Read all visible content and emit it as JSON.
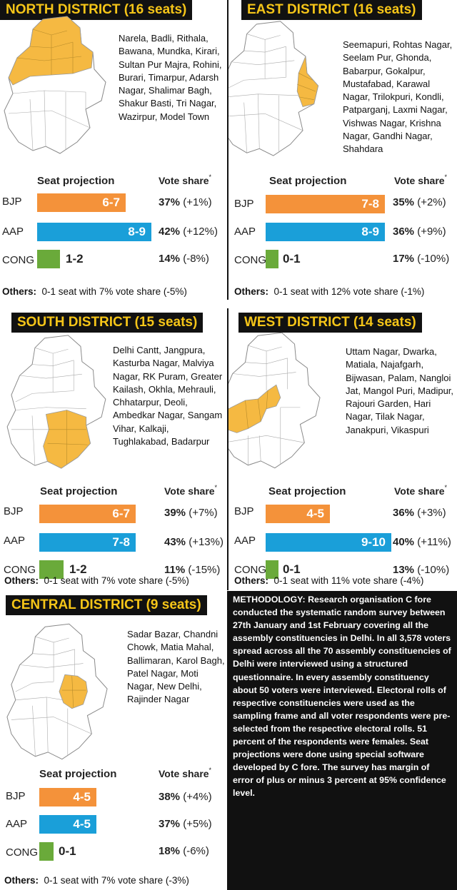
{
  "colors": {
    "bjp": "#f4923a",
    "aap": "#1a9fd9",
    "cong": "#6aaa3a",
    "highlight": "#f5b942",
    "title_bg": "#111111",
    "title_text": "#f5c518"
  },
  "labels": {
    "seat_projection": "Seat projection",
    "vote_share": "Vote share",
    "vote_share_mark": "*",
    "others_prefix": "Others:"
  },
  "districts": [
    {
      "title": "NORTH DISTRICT (16 seats)",
      "constituencies": "Narela, Badli, Rithala, Bawana, Mundka, Kirari, Sultan Pur Majra, Rohini, Burari, Timarpur, Adarsh Nagar, Shalimar Bagh, Shakur Basti, Tri Nagar, Wazirpur, Model Town",
      "others": "0-1 seat with 7% vote share (-5%)",
      "parties": [
        {
          "name": "BJP",
          "seats": "6-7",
          "vote": "37%",
          "change": "(+1%)"
        },
        {
          "name": "AAP",
          "seats": "8-9",
          "vote": "42%",
          "change": "(+12%)"
        },
        {
          "name": "CONG",
          "seats": "1-2",
          "vote": "14%",
          "change": "(-8%)"
        }
      ]
    },
    {
      "title": "EAST DISTRICT (16 seats)",
      "constituencies": "Seemapuri, Rohtas Nagar, Seelam Pur, Ghonda, Babarpur, Gokalpur, Mustafabad, Karawal Nagar, Trilokpuri, Kondli, Patparganj, Laxmi Nagar, Vishwas Nagar, Krishna Nagar, Gandhi Nagar, Shahdara",
      "others": "0-1 seat with 12% vote share (-1%)",
      "parties": [
        {
          "name": "BJP",
          "seats": "7-8",
          "vote": "35%",
          "change": "(+2%)"
        },
        {
          "name": "AAP",
          "seats": "8-9",
          "vote": "36%",
          "change": "(+9%)"
        },
        {
          "name": "CONG",
          "seats": "0-1",
          "vote": "17%",
          "change": "(-10%)"
        }
      ]
    },
    {
      "title": "SOUTH DISTRICT (15 seats)",
      "constituencies": "Delhi Cantt, Jangpura, Kasturba Nagar, Malviya Nagar, RK Puram, Greater Kailash, Okhla, Mehrauli, Chhatarpur, Deoli, Ambedkar Nagar, Sangam Vihar, Kalkaji, Tughlakabad, Badarpur",
      "others": "0-1 seat with 7% vote share (-5%)",
      "parties": [
        {
          "name": "BJP",
          "seats": "6-7",
          "vote": "39%",
          "change": "(+7%)"
        },
        {
          "name": "AAP",
          "seats": "7-8",
          "vote": "43%",
          "change": "(+13%)"
        },
        {
          "name": "CONG",
          "seats": "1-2",
          "vote": "11%",
          "change": "(-15%)"
        }
      ]
    },
    {
      "title": "WEST DISTRICT (14 seats)",
      "constituencies": "Uttam Nagar, Dwarka, Matiala, Najafgarh, Bijwasan, Palam, Nangloi Jat, Mangol Puri, Madipur, Rajouri Garden, Hari Nagar, Tilak Nagar, Janakpuri, Vikaspuri",
      "others": "0-1 seat with 11% vote share (-4%)",
      "parties": [
        {
          "name": "BJP",
          "seats": "4-5",
          "vote": "36%",
          "change": "(+3%)"
        },
        {
          "name": "AAP",
          "seats": "9-10",
          "vote": "40%",
          "change": "(+11%)"
        },
        {
          "name": "CONG",
          "seats": "0-1",
          "vote": "13%",
          "change": "(-10%)"
        }
      ]
    },
    {
      "title": "CENTRAL DISTRICT (9 seats)",
      "constituencies": "Sadar Bazar, Chandni Chowk, Matia Mahal, Ballimaran, Karol Bagh, Patel Nagar, Moti Nagar, New Delhi, Rajinder Nagar",
      "others": "0-1 seat with 7% vote share (-3%)",
      "parties": [
        {
          "name": "BJP",
          "seats": "4-5",
          "vote": "38%",
          "change": "(+4%)"
        },
        {
          "name": "AAP",
          "seats": "4-5",
          "vote": "37%",
          "change": "(+5%)"
        },
        {
          "name": "CONG",
          "seats": "0-1",
          "vote": "18%",
          "change": "(-6%)"
        }
      ]
    }
  ],
  "methodology": "METHODOLOGY: Research organisation C fore conducted the systematic random survey between 27th January and 1st February covering all the assembly constituencies in Delhi. In all 3,578 voters spread across all the 70 assembly constituencies of Delhi were interviewed using a structured questionnaire. In every assembly constituency about 50 voters were interviewed. Electoral rolls of respective constituencies were used as the sampling frame and all voter respondents were pre-selected from the respective electoral rolls. 51 percent of the respondents were females. Seat projections were done using special software developed by C fore. The survey has margin of error of plus or minus 3 percent at 95% confidence level.",
  "chart_data": [
    {
      "type": "bar",
      "title": "NORTH DISTRICT (16 seats)",
      "categories": [
        "BJP",
        "AAP",
        "CONG"
      ],
      "series": [
        {
          "name": "Seat projection",
          "values": [
            [
              6,
              7
            ],
            [
              8,
              9
            ],
            [
              1,
              2
            ]
          ]
        },
        {
          "name": "Vote share",
          "values": [
            37,
            42,
            14
          ]
        }
      ]
    },
    {
      "type": "bar",
      "title": "EAST DISTRICT (16 seats)",
      "categories": [
        "BJP",
        "AAP",
        "CONG"
      ],
      "series": [
        {
          "name": "Seat projection",
          "values": [
            [
              7,
              8
            ],
            [
              8,
              9
            ],
            [
              0,
              1
            ]
          ]
        },
        {
          "name": "Vote share",
          "values": [
            35,
            36,
            17
          ]
        }
      ]
    },
    {
      "type": "bar",
      "title": "SOUTH DISTRICT (15 seats)",
      "categories": [
        "BJP",
        "AAP",
        "CONG"
      ],
      "series": [
        {
          "name": "Seat projection",
          "values": [
            [
              6,
              7
            ],
            [
              7,
              8
            ],
            [
              1,
              2
            ]
          ]
        },
        {
          "name": "Vote share",
          "values": [
            39,
            43,
            11
          ]
        }
      ]
    },
    {
      "type": "bar",
      "title": "WEST DISTRICT (14 seats)",
      "categories": [
        "BJP",
        "AAP",
        "CONG"
      ],
      "series": [
        {
          "name": "Seat projection",
          "values": [
            [
              4,
              5
            ],
            [
              9,
              10
            ],
            [
              0,
              1
            ]
          ]
        },
        {
          "name": "Vote share",
          "values": [
            36,
            40,
            13
          ]
        }
      ]
    },
    {
      "type": "bar",
      "title": "CENTRAL DISTRICT (9 seats)",
      "categories": [
        "BJP",
        "AAP",
        "CONG"
      ],
      "series": [
        {
          "name": "Seat projection",
          "values": [
            [
              4,
              5
            ],
            [
              4,
              5
            ],
            [
              0,
              1
            ]
          ]
        },
        {
          "name": "Vote share",
          "values": [
            38,
            37,
            18
          ]
        }
      ]
    }
  ]
}
